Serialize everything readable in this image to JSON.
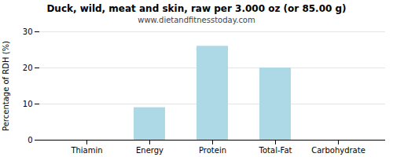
{
  "chart_data": {
    "type": "bar",
    "title": "Duck, wild, meat and skin, raw per 3.000 oz (or 85.00 g)",
    "subtitle": "www.dietandfitnesstoday.com",
    "categories": [
      "Thiamin",
      "Energy",
      "Protein",
      "Total-Fat",
      "Carbohydrate"
    ],
    "values": [
      0.0,
      9.0,
      26.0,
      20.0,
      0.0
    ],
    "color": "#add8e6",
    "ylabel": "Percentage of RDH (%)",
    "ylim": [
      0,
      30
    ],
    "yticks": [
      0,
      10,
      20,
      30
    ],
    "grid": true
  }
}
